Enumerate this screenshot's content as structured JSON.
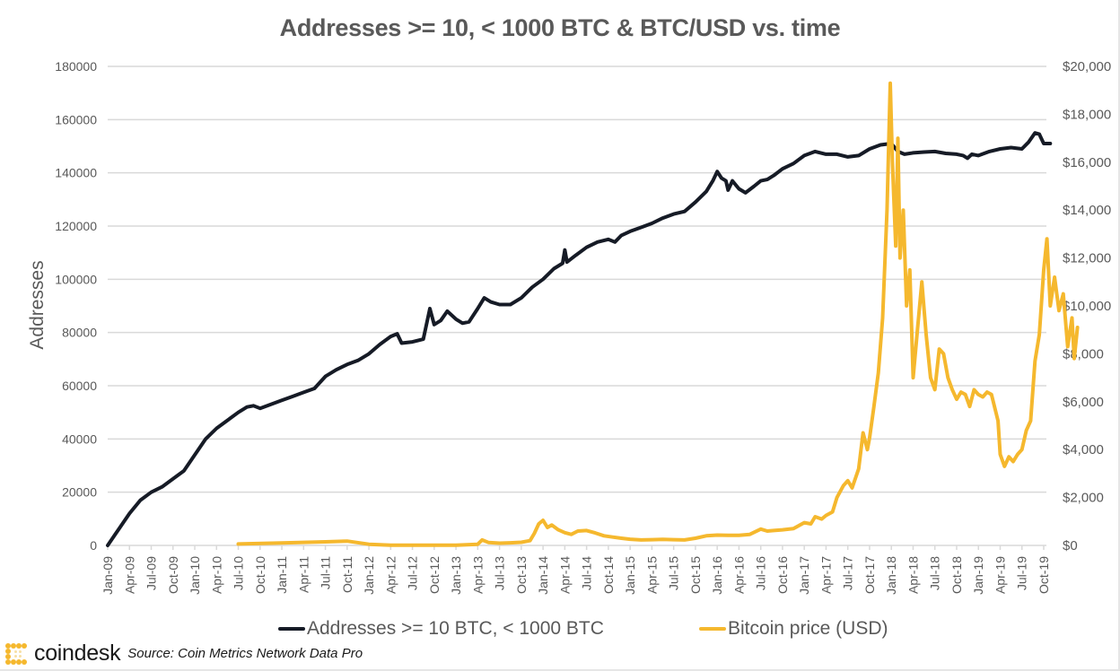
{
  "chart_data": {
    "type": "line",
    "title": "Addresses >= 10, < 1000 BTC & BTC/USD vs. time",
    "ylabel": "Addresses",
    "y2label": "",
    "xlabel": "",
    "ylim": [
      0,
      180000
    ],
    "y2lim": [
      0,
      20000
    ],
    "yticks": [
      "0",
      "20000",
      "40000",
      "60000",
      "80000",
      "100000",
      "120000",
      "140000",
      "160000",
      "180000"
    ],
    "y2ticks": [
      "$0",
      "$2,000",
      "$4,000",
      "$6,000",
      "$8,000",
      "$10,000",
      "$12,000",
      "$14,000",
      "$16,000",
      "$18,000",
      "$20,000"
    ],
    "xticks": [
      "Jan-09",
      "Apr-09",
      "Jul-09",
      "Oct-09",
      "Jan-10",
      "Apr-10",
      "Jul-10",
      "Oct-10",
      "Jan-11",
      "Apr-11",
      "Jul-11",
      "Oct-11",
      "Jan-12",
      "Apr-12",
      "Jul-12",
      "Oct-12",
      "Jan-13",
      "Apr-13",
      "Jul-13",
      "Oct-13",
      "Jan-14",
      "Apr-14",
      "Jul-14",
      "Oct-14",
      "Jan-15",
      "Apr-15",
      "Jul-15",
      "Oct-15",
      "Jan-16",
      "Apr-16",
      "Jul-16",
      "Oct-16",
      "Jan-17",
      "Apr-17",
      "Jul-17",
      "Oct-17",
      "Jan-18",
      "Apr-18",
      "Jul-18",
      "Oct-18",
      "Jan-19",
      "Apr-19",
      "Jul-19",
      "Oct-19"
    ],
    "grid": true,
    "legend_position": "bottom",
    "x_unit": "quarters since Jan-09",
    "series": [
      {
        "name": "Addresses >= 10 BTC, < 1000 BTC",
        "axis": "left",
        "color": "#161b26",
        "points": [
          [
            0,
            0
          ],
          [
            0.5,
            6000
          ],
          [
            1,
            12000
          ],
          [
            1.5,
            17000
          ],
          [
            2,
            20000
          ],
          [
            2.5,
            22000
          ],
          [
            3,
            25000
          ],
          [
            3.5,
            28000
          ],
          [
            4,
            34000
          ],
          [
            4.5,
            40000
          ],
          [
            5,
            44000
          ],
          [
            5.5,
            47000
          ],
          [
            6,
            50000
          ],
          [
            6.4,
            52000
          ],
          [
            6.7,
            52500
          ],
          [
            7,
            51500
          ],
          [
            7.5,
            53000
          ],
          [
            8,
            54500
          ],
          [
            8.5,
            56000
          ],
          [
            9,
            57500
          ],
          [
            9.5,
            59000
          ],
          [
            10,
            63500
          ],
          [
            10.5,
            66000
          ],
          [
            11,
            68000
          ],
          [
            11.5,
            69500
          ],
          [
            12,
            72000
          ],
          [
            12.5,
            75500
          ],
          [
            13,
            78500
          ],
          [
            13.3,
            79500
          ],
          [
            13.5,
            76000
          ],
          [
            14,
            76500
          ],
          [
            14.5,
            77500
          ],
          [
            14.8,
            89000
          ],
          [
            15,
            83000
          ],
          [
            15.3,
            84500
          ],
          [
            15.6,
            88000
          ],
          [
            16,
            85000
          ],
          [
            16.3,
            83500
          ],
          [
            16.6,
            84000
          ],
          [
            17,
            89000
          ],
          [
            17.3,
            93000
          ],
          [
            17.6,
            91500
          ],
          [
            18,
            90500
          ],
          [
            18.5,
            90500
          ],
          [
            19,
            93000
          ],
          [
            19.5,
            97000
          ],
          [
            20,
            100000
          ],
          [
            20.5,
            104000
          ],
          [
            20.9,
            106000
          ],
          [
            21,
            111000
          ],
          [
            21.1,
            106500
          ],
          [
            21.5,
            109000
          ],
          [
            22,
            112000
          ],
          [
            22.5,
            114000
          ],
          [
            23,
            115000
          ],
          [
            23.3,
            114000
          ],
          [
            23.6,
            116500
          ],
          [
            24,
            118000
          ],
          [
            24.5,
            119500
          ],
          [
            25,
            121000
          ],
          [
            25.5,
            123000
          ],
          [
            26,
            124500
          ],
          [
            26.5,
            125500
          ],
          [
            27,
            129000
          ],
          [
            27.5,
            133000
          ],
          [
            27.8,
            137000
          ],
          [
            28,
            140500
          ],
          [
            28.2,
            138000
          ],
          [
            28.4,
            137000
          ],
          [
            28.5,
            133500
          ],
          [
            28.7,
            137000
          ],
          [
            29,
            134000
          ],
          [
            29.3,
            132500
          ],
          [
            29.7,
            135000
          ],
          [
            30,
            137000
          ],
          [
            30.3,
            137500
          ],
          [
            30.6,
            139000
          ],
          [
            31,
            141500
          ],
          [
            31.5,
            143500
          ],
          [
            32,
            146500
          ],
          [
            32.5,
            148000
          ],
          [
            33,
            147000
          ],
          [
            33.5,
            147000
          ],
          [
            34,
            146000
          ],
          [
            34.5,
            146500
          ],
          [
            35,
            149000
          ],
          [
            35.5,
            150500
          ],
          [
            36,
            151000
          ],
          [
            36.3,
            148000
          ],
          [
            36.6,
            147000
          ],
          [
            37,
            147500
          ],
          [
            37.5,
            147800
          ],
          [
            38,
            148000
          ],
          [
            38.5,
            147300
          ],
          [
            39,
            147000
          ],
          [
            39.3,
            146500
          ],
          [
            39.5,
            145500
          ],
          [
            39.7,
            147000
          ],
          [
            40,
            146500
          ],
          [
            40.5,
            148000
          ],
          [
            41,
            149000
          ],
          [
            41.5,
            149500
          ],
          [
            42,
            149000
          ],
          [
            42.3,
            151500
          ],
          [
            42.6,
            155000
          ],
          [
            42.8,
            154500
          ],
          [
            43,
            151000
          ],
          [
            43.3,
            151000
          ]
        ]
      },
      {
        "name": "Bitcoin price (USD)",
        "axis": "right",
        "color": "#f5b82e",
        "points": [
          [
            6,
            60
          ],
          [
            8,
            100
          ],
          [
            10,
            150
          ],
          [
            11,
            180
          ],
          [
            12,
            50
          ],
          [
            13,
            10
          ],
          [
            14,
            10
          ],
          [
            15,
            12
          ],
          [
            16,
            13
          ],
          [
            17,
            50
          ],
          [
            17.2,
            230
          ],
          [
            17.5,
            120
          ],
          [
            18,
            95
          ],
          [
            18.5,
            110
          ],
          [
            19,
            130
          ],
          [
            19.4,
            200
          ],
          [
            19.6,
            500
          ],
          [
            19.8,
            900
          ],
          [
            20,
            1050
          ],
          [
            20.2,
            750
          ],
          [
            20.4,
            850
          ],
          [
            20.7,
            650
          ],
          [
            21,
            530
          ],
          [
            21.3,
            460
          ],
          [
            21.6,
            600
          ],
          [
            22,
            620
          ],
          [
            22.4,
            520
          ],
          [
            22.8,
            400
          ],
          [
            23.2,
            350
          ],
          [
            23.6,
            300
          ],
          [
            24,
            260
          ],
          [
            24.5,
            230
          ],
          [
            25,
            240
          ],
          [
            25.5,
            250
          ],
          [
            26,
            240
          ],
          [
            26.5,
            230
          ],
          [
            27,
            300
          ],
          [
            27.5,
            400
          ],
          [
            28,
            430
          ],
          [
            28.5,
            420
          ],
          [
            29,
            420
          ],
          [
            29.5,
            460
          ],
          [
            30,
            680
          ],
          [
            30.3,
            600
          ],
          [
            30.6,
            620
          ],
          [
            31,
            650
          ],
          [
            31.5,
            700
          ],
          [
            32,
            950
          ],
          [
            32.3,
            900
          ],
          [
            32.5,
            1200
          ],
          [
            32.8,
            1100
          ],
          [
            33,
            1250
          ],
          [
            33.3,
            1400
          ],
          [
            33.5,
            2000
          ],
          [
            33.8,
            2500
          ],
          [
            34,
            2700
          ],
          [
            34.2,
            2400
          ],
          [
            34.5,
            3200
          ],
          [
            34.7,
            4700
          ],
          [
            34.9,
            4000
          ],
          [
            35,
            4500
          ],
          [
            35.2,
            5800
          ],
          [
            35.4,
            7200
          ],
          [
            35.6,
            9500
          ],
          [
            35.8,
            14000
          ],
          [
            35.95,
            19300
          ],
          [
            36.05,
            16000
          ],
          [
            36.2,
            12500
          ],
          [
            36.3,
            17000
          ],
          [
            36.4,
            12000
          ],
          [
            36.55,
            14000
          ],
          [
            36.7,
            10000
          ],
          [
            36.85,
            11500
          ],
          [
            37,
            7000
          ],
          [
            37.2,
            9000
          ],
          [
            37.4,
            11000
          ],
          [
            37.6,
            8800
          ],
          [
            37.8,
            7000
          ],
          [
            38,
            6500
          ],
          [
            38.2,
            8200
          ],
          [
            38.4,
            8000
          ],
          [
            38.6,
            7000
          ],
          [
            38.8,
            6500
          ],
          [
            39,
            6100
          ],
          [
            39.2,
            6400
          ],
          [
            39.4,
            6300
          ],
          [
            39.6,
            5800
          ],
          [
            39.8,
            6500
          ],
          [
            40,
            6300
          ],
          [
            40.2,
            6200
          ],
          [
            40.4,
            6400
          ],
          [
            40.6,
            6300
          ],
          [
            40.9,
            5200
          ],
          [
            41,
            3800
          ],
          [
            41.2,
            3300
          ],
          [
            41.4,
            3700
          ],
          [
            41.6,
            3500
          ],
          [
            41.8,
            3800
          ],
          [
            42,
            4000
          ],
          [
            42.2,
            4800
          ],
          [
            42.4,
            5200
          ],
          [
            42.6,
            7700
          ],
          [
            42.8,
            8800
          ],
          [
            43,
            11500
          ],
          [
            43.15,
            12800
          ],
          [
            43.3,
            10000
          ],
          [
            43.5,
            11200
          ],
          [
            43.7,
            9800
          ],
          [
            43.9,
            10500
          ],
          [
            44.1,
            8300
          ],
          [
            44.3,
            9500
          ],
          [
            44.4,
            7800
          ],
          [
            44.55,
            9100
          ]
        ]
      }
    ]
  },
  "legend": {
    "items": [
      {
        "label": "Addresses >= 10 BTC, < 1000 BTC",
        "color": "#161b26"
      },
      {
        "label": "Bitcoin price (USD)",
        "color": "#f5b82e"
      }
    ]
  },
  "footer": {
    "brand": "coindesk",
    "source": "Source: Coin Metrics Network Data Pro"
  }
}
